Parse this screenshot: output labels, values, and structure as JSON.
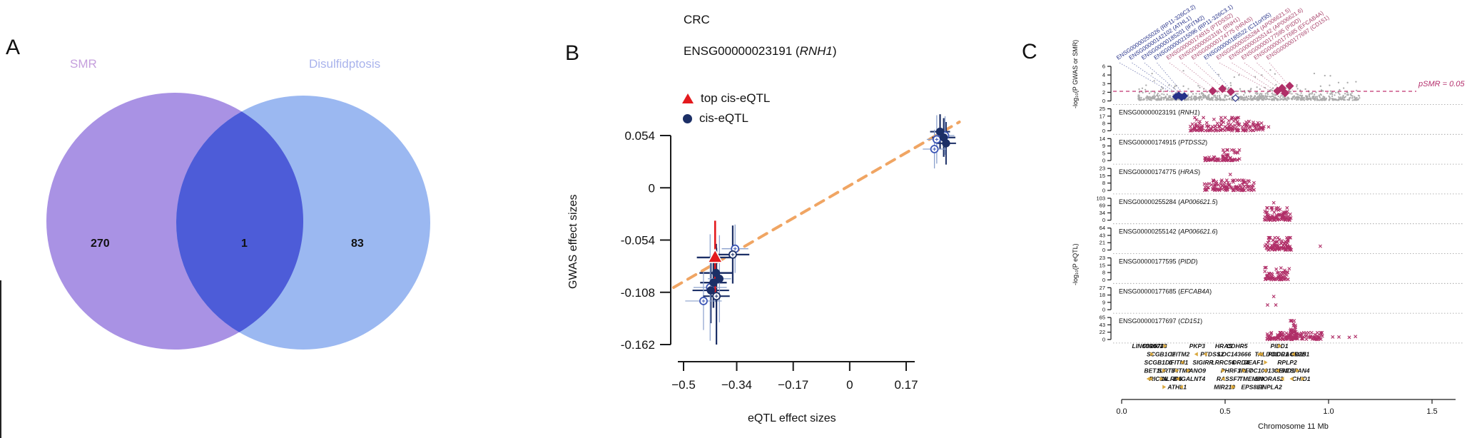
{
  "figure": {
    "panel_a": {
      "label": "A",
      "set_left": "SMR",
      "set_right": "Disulfidptosis",
      "count_left": "270",
      "count_intersection": "1",
      "count_right": "83"
    },
    "panel_b": {
      "label": "B",
      "title": "CRC",
      "subtitle_prefix": "ENSG00000023191 (",
      "subtitle_gene": "RNH1",
      "subtitle_suffix": ")",
      "legend_top": "top cis-eQTL",
      "legend_cis": "cis-eQTL",
      "xlabel": "eQTL effect sizes",
      "ylabel": "GWAS effect sizes"
    },
    "panel_c": {
      "label": "C",
      "ylabel_gwas": "-log₁₀(P GWAS or SMR)",
      "ylabel_eqtl": "-log₁₀(P eQTL)",
      "xlabel": "Chromosome 11 Mb",
      "threshold_label": "pSMR = 0.05"
    }
  },
  "colors": {
    "venn_left": "#a289e2",
    "venn_right": "#93b2f0",
    "venn_overlap": "#4d5cd8",
    "venn_left_label": "#c59fdd",
    "venn_right_label": "#a9b3ec",
    "navy": "#1c2f66",
    "light_blue": "#8aa0cc",
    "open_blue": "#3b55b5",
    "red": "#e3191d",
    "trend_orange": "#f0a563",
    "crimson": "#b02f68",
    "dashed_line": "#c0336f",
    "top_label_navy": "#263189",
    "top_label_red": "#a8436b",
    "gray_points": "#ababab",
    "gold": "#d8a435",
    "axis": "#1a1a1a"
  },
  "chart_data": [
    {
      "type": "venn",
      "sets": [
        {
          "name": "SMR",
          "unique": 270
        },
        {
          "name": "Disulfidptosis",
          "unique": 83
        }
      ],
      "intersection": 1
    },
    {
      "type": "scatter",
      "title": "CRC",
      "subtitle": "ENSG00000023191 (RNH1)",
      "xlabel": "eQTL effect sizes",
      "ylabel": "GWAS effect sizes",
      "x_ticks": [
        -0.5,
        -0.34,
        -0.17,
        0,
        0.17
      ],
      "y_ticks": [
        0.054,
        0,
        -0.054,
        -0.108,
        -0.162
      ],
      "xlim": [
        -0.56,
        0.34
      ],
      "ylim": [
        -0.175,
        0.075
      ],
      "legend": [
        "top cis-eQTL",
        "cis-eQTL"
      ],
      "trend_line": {
        "x1": -0.53,
        "y1": -0.103,
        "x2": 0.33,
        "y2": 0.068
      },
      "series_top_cis_eqtl": [
        {
          "x": -0.405,
          "y": -0.072,
          "xe": 0.055,
          "ye": 0.038
        }
      ],
      "series_cis_eqtl_filled": [
        {
          "x": -0.402,
          "y": -0.088,
          "xe": 0.05,
          "ye": 0.03,
          "lw": 2.4
        },
        {
          "x": -0.41,
          "y": -0.098,
          "xe": 0.04,
          "ye": 0.026,
          "lw": 2.4
        },
        {
          "x": -0.418,
          "y": -0.106,
          "xe": 0.055,
          "ye": 0.034,
          "lw": 2.2
        },
        {
          "x": -0.392,
          "y": -0.094,
          "xe": 0.035,
          "ye": 0.045,
          "lw": 1.2
        },
        {
          "x": 0.272,
          "y": 0.058,
          "xe": 0.03,
          "ye": 0.018,
          "lw": 2.2
        },
        {
          "x": 0.283,
          "y": 0.052,
          "xe": 0.035,
          "ye": 0.02,
          "lw": 2.2
        },
        {
          "x": 0.29,
          "y": 0.046,
          "xe": 0.03,
          "ye": 0.022,
          "lw": 2.0
        }
      ],
      "series_cis_eqtl_open": [
        {
          "x": -0.345,
          "y": -0.063,
          "xe": 0.04,
          "ye": 0.025,
          "lw": 1.3
        },
        {
          "x": -0.352,
          "y": -0.069,
          "xe": 0.05,
          "ye": 0.03,
          "lw": 2.2
        },
        {
          "x": -0.44,
          "y": -0.117,
          "xe": 0.055,
          "ye": 0.03,
          "lw": 1.2
        },
        {
          "x": -0.401,
          "y": -0.112,
          "xe": 0.04,
          "ye": 0.05,
          "lw": 2.2
        },
        {
          "x": -0.42,
          "y": -0.103,
          "xe": 0.05,
          "ye": 0.055,
          "lw": 1.2
        },
        {
          "x": 0.255,
          "y": 0.04,
          "xe": 0.035,
          "ye": 0.02,
          "lw": 1.3
        },
        {
          "x": 0.262,
          "y": 0.05,
          "xe": 0.03,
          "ye": 0.025,
          "lw": 1.3
        },
        {
          "x": 0.287,
          "y": 0.054,
          "xe": 0.028,
          "ye": 0.02,
          "lw": 1.2
        }
      ]
    },
    {
      "type": "locus",
      "xlabel": "Chromosome 11 Mb",
      "x_ticks": [
        0.0,
        0.5,
        1.0,
        1.5
      ],
      "threshold_label": "pSMR = 0.05",
      "gwas_track": {
        "ylabel": "-log10(P GWAS or SMR)",
        "y_ticks": [
          6,
          4,
          3,
          2,
          0
        ],
        "background_cloud": {
          "n": 850,
          "x_min": 0.08,
          "x_max": 1.15,
          "seed": 7
        },
        "navy_diamonds": [
          {
            "x": 0.262,
            "h": 5,
            "filled": true
          },
          {
            "x": 0.276,
            "h": 7,
            "filled": true
          },
          {
            "x": 0.29,
            "h": 4,
            "filled": true
          },
          {
            "x": 0.303,
            "h": 6,
            "filled": true
          },
          {
            "x": 0.55,
            "h": 3,
            "filled": false
          }
        ],
        "red_diamonds": [
          {
            "x": 0.44,
            "h": 13
          },
          {
            "x": 0.487,
            "h": 16
          },
          {
            "x": 0.528,
            "h": 12
          },
          {
            "x": 0.753,
            "h": 13
          },
          {
            "x": 0.775,
            "h": 17
          },
          {
            "x": 0.812,
            "h": 20
          },
          {
            "x": 0.79,
            "h": 10
          }
        ]
      },
      "top_labels": [
        {
          "text": "ENSG00000255026 (RP11-326C3.2)",
          "color": "navy",
          "target": 0.262
        },
        {
          "text": "ENSG00000142102 (ATHL1)",
          "color": "navy",
          "target": 0.276
        },
        {
          "text": "ENSG00000185201 (IFITM2)",
          "color": "navy",
          "target": 0.29
        },
        {
          "text": "ENSG00000215096 (RP11-326C3.1)",
          "color": "navy",
          "target": 0.303
        },
        {
          "text": "ENSG00000174915 (PTDSS2)",
          "color": "red",
          "target": 0.44
        },
        {
          "text": "ENSG00000023191 (RNH1)",
          "color": "red",
          "target": 0.487
        },
        {
          "text": "ENSG00000174775 (HRAS)",
          "color": "red",
          "target": 0.528
        },
        {
          "text": "ENSG00000185522 (C11orf35)",
          "color": "navy",
          "target": 0.55
        },
        {
          "text": "ENSG00000255284 (AP006621.5)",
          "color": "red",
          "target": 0.753
        },
        {
          "text": "ENSG00000255142 (AP006621.6)",
          "color": "red",
          "target": 0.775
        },
        {
          "text": "ENSG00000177595 (PIDD)",
          "color": "red",
          "target": 0.8
        },
        {
          "text": "ENSG00000177685 (EFCAB4A)",
          "color": "red",
          "target": 0.82
        },
        {
          "text": "ENSG00000177697 (CD151)",
          "color": "red",
          "target": 0.845
        }
      ],
      "eqtl_tracks": [
        {
          "ensembl": "ENSG00000023191",
          "gene": "RNH1",
          "y_ticks": [
            25,
            17,
            8,
            0
          ],
          "clusters": [
            {
              "x0": 0.33,
              "x1": 0.69,
              "n": 150,
              "h": 0.62,
              "seed": 11
            }
          ],
          "extra": [
            [
              0.71,
              0.18
            ]
          ]
        },
        {
          "ensembl": "ENSG00000174915",
          "gene": "PTDSS2",
          "y_ticks": [
            14,
            9,
            5,
            0
          ],
          "clusters": [
            {
              "x0": 0.4,
              "x1": 0.47,
              "n": 25,
              "h": 0.25,
              "seed": 12
            },
            {
              "x0": 0.48,
              "x1": 0.57,
              "n": 45,
              "h": 0.5,
              "seed": 13
            }
          ],
          "extra": []
        },
        {
          "ensembl": "ENSG00000174775",
          "gene": "HRAS",
          "y_ticks": [
            23,
            15,
            8,
            0
          ],
          "clusters": [
            {
              "x0": 0.4,
              "x1": 0.64,
              "n": 110,
              "h": 0.48,
              "seed": 14
            }
          ],
          "extra": [
            [
              0.525,
              0.75
            ]
          ]
        },
        {
          "ensembl": "ENSG00000255284",
          "gene": "AP006621.5",
          "y_ticks": [
            103,
            69,
            34,
            0
          ],
          "clusters": [
            {
              "x0": 0.69,
              "x1": 0.82,
              "n": 90,
              "h": 0.58,
              "seed": 15
            }
          ],
          "extra": [
            [
              0.735,
              0.82
            ]
          ]
        },
        {
          "ensembl": "ENSG00000255142",
          "gene": "AP006621.6",
          "y_ticks": [
            64,
            43,
            21,
            0
          ],
          "clusters": [
            {
              "x0": 0.69,
              "x1": 0.82,
              "n": 90,
              "h": 0.58,
              "seed": 16
            }
          ],
          "extra": [
            [
              0.96,
              0.18
            ]
          ]
        },
        {
          "ensembl": "ENSG00000177595",
          "gene": "PIDD",
          "y_ticks": [
            23,
            15,
            8,
            0
          ],
          "clusters": [
            {
              "x0": 0.69,
              "x1": 0.81,
              "n": 70,
              "h": 0.58,
              "seed": 17
            }
          ],
          "extra": []
        },
        {
          "ensembl": "ENSG00000177685",
          "gene": "EFCAB4A",
          "y_ticks": [
            27,
            18,
            9,
            0
          ],
          "clusters": [],
          "extra": [
            [
              0.735,
              0.62
            ],
            [
              0.705,
              0.22
            ],
            [
              0.745,
              0.22
            ]
          ]
        },
        {
          "ensembl": "ENSG00000177697",
          "gene": "CD151",
          "y_ticks": [
            65,
            43,
            22,
            0
          ],
          "clusters": [
            {
              "x0": 0.7,
              "x1": 0.97,
              "n": 120,
              "h": 0.32,
              "seed": 18
            },
            {
              "x0": 0.815,
              "x1": 0.845,
              "n": 40,
              "h": 0.88,
              "seed": 19
            }
          ],
          "extra": [
            [
              1.02,
              0.12
            ],
            [
              1.05,
              0.12
            ],
            [
              1.1,
              0.1
            ],
            [
              1.13,
              0.14
            ]
          ]
        }
      ],
      "gene_map": {
        "genes": [
          [
            "LINC01001",
            0.125,
            0
          ],
          [
            "MIR6743",
            0.16,
            0
          ],
          [
            "PKP3",
            0.365,
            0
          ],
          [
            "HRAS",
            0.493,
            0
          ],
          [
            "CDHR5",
            0.558,
            0
          ],
          [
            "PIDD1",
            0.762,
            0
          ],
          [
            "SCGB1C2",
            0.19,
            1
          ],
          [
            "IFITM2",
            0.282,
            1
          ],
          [
            "PTDSS2",
            0.437,
            1
          ],
          [
            "LOC143666",
            0.545,
            1
          ],
          [
            "TALDO1",
            0.7,
            1
          ],
          [
            "PDDC1",
            0.757,
            1
          ],
          [
            "CRACR2B",
            0.82,
            1
          ],
          [
            "CD151",
            0.862,
            1
          ],
          [
            "SCGB1D1",
            0.178,
            2
          ],
          [
            "IFITM1",
            0.275,
            2
          ],
          [
            "SIGIRR",
            0.393,
            2
          ],
          [
            "LRRC56",
            0.49,
            2
          ],
          [
            "DRD4",
            0.575,
            2
          ],
          [
            "DEAF1",
            0.638,
            2
          ],
          [
            "RPLP2",
            0.8,
            2
          ],
          [
            "BET1L",
            0.155,
            3
          ],
          [
            "SIRT3",
            0.216,
            3
          ],
          [
            "IFITM3",
            0.286,
            3
          ],
          [
            "ANO9",
            0.366,
            3
          ],
          [
            "PHRF1",
            0.527,
            3
          ],
          [
            "IRF7",
            0.6,
            3
          ],
          [
            "LOC100133161",
            0.7,
            3
          ],
          [
            "CEND1",
            0.787,
            3
          ],
          [
            "TSPAN4",
            0.852,
            3
          ],
          [
            "RIC8A",
            0.177,
            4
          ],
          [
            "NLRP6",
            0.243,
            4
          ],
          [
            "B4GALNT4",
            0.327,
            4
          ],
          [
            "RASSF7",
            0.516,
            4
          ],
          [
            "TMEM80",
            0.627,
            4
          ],
          [
            "SNORA52",
            0.712,
            4
          ],
          [
            "CHID1",
            0.868,
            4
          ],
          [
            "ATHL1",
            0.268,
            5
          ],
          [
            "MIR210",
            0.497,
            5
          ],
          [
            "EPS8L2",
            0.632,
            5
          ],
          [
            "PNPLA2",
            0.717,
            5
          ]
        ],
        "arrows": {
          "n": 30,
          "seed": 23
        }
      }
    }
  ]
}
